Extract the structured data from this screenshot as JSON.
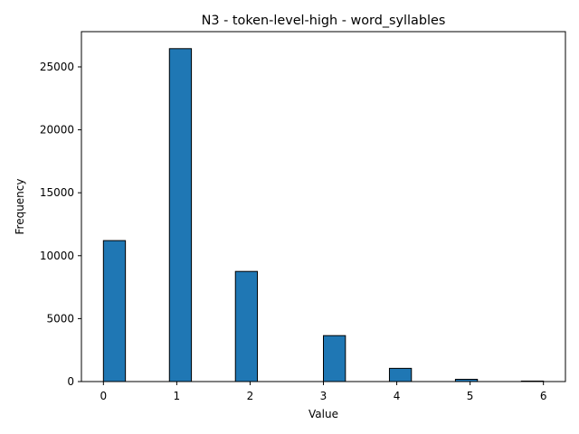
{
  "chart_data": {
    "type": "bar",
    "title": "N3 - token-level-high - word_syllables",
    "xlabel": "Value",
    "ylabel": "Frequency",
    "xlim": [
      -0.3,
      6.3
    ],
    "ylim": [
      0,
      27800
    ],
    "xticks": [
      0,
      1,
      2,
      3,
      4,
      5,
      6
    ],
    "yticks": [
      0,
      5000,
      10000,
      15000,
      20000,
      25000
    ],
    "bin_width": 0.3,
    "bars": [
      {
        "x": 0.15,
        "value": 11200
      },
      {
        "x": 1.05,
        "value": 26450
      },
      {
        "x": 1.95,
        "value": 8750
      },
      {
        "x": 3.15,
        "value": 3650
      },
      {
        "x": 4.05,
        "value": 1050
      },
      {
        "x": 4.95,
        "value": 180
      },
      {
        "x": 5.85,
        "value": 40
      }
    ],
    "bar_color": "#1f77b4",
    "edge_color": "#000000",
    "grid": false,
    "legend": false
  }
}
